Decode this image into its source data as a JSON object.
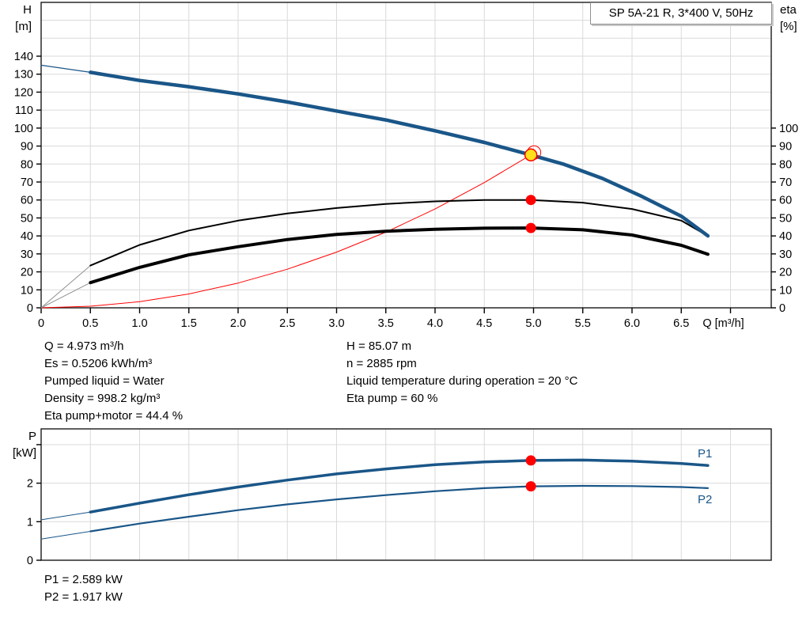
{
  "title_box": "SP 5A-21 R, 3*400 V, 50Hz",
  "axis_labels": {
    "h_line1": "H",
    "h_line2": "[m]",
    "eta_line1": "eta",
    "eta_line2": "[%]",
    "p_line1": "P",
    "p_line2": "[kW]",
    "q_unit": "Q [m³/h]"
  },
  "info": {
    "left": [
      "Q = 4.973 m³/h",
      "Es = 0.5206 kWh/m³",
      "Pumped liquid = Water",
      "Density = 998.2 kg/m³",
      "Eta pump+motor = 44.4 %"
    ],
    "right": [
      "H = 85.07 m",
      "n = 2885 rpm",
      "Liquid temperature during operation = 20 °C",
      "Eta pump = 60 %"
    ]
  },
  "power": [
    "P1 = 2.589 kW",
    "P2 = 1.917 kW"
  ],
  "curve_labels": {
    "p1": "P1",
    "p2": "P2"
  },
  "colors": {
    "curve_blue": "#1A5688",
    "eta_black": "#000000",
    "lead_gray": "#909090",
    "system_red": "#FF0000",
    "marker_red": "#FF0000",
    "marker_yellow": "#FFE01A",
    "grid": "#DADADA",
    "border": "#1a1a1a"
  },
  "operating_point": {
    "q": 4.973,
    "h": 85.07,
    "eta_pump": 60,
    "eta_pump_motor": 44.4,
    "p1": 2.589,
    "p2": 1.917
  },
  "chart_data": [
    {
      "type": "line",
      "title": "SP 5A-21 R, 3*400 V, 50Hz",
      "xlabel": "Q [m³/h]",
      "ylabel_left": "H [m]",
      "ylabel_right": "eta [%]",
      "xlim": [
        0,
        7.41
      ],
      "ylim_left": [
        0,
        170
      ],
      "ylim_right": [
        0,
        100
      ],
      "x_grid": [
        0.5,
        1,
        1.5,
        2,
        2.5,
        3,
        3.5,
        4,
        4.5,
        5,
        5.5,
        6,
        6.5,
        7
      ],
      "y_grid": [
        10,
        20,
        30,
        40,
        50,
        60,
        70,
        80,
        90,
        100,
        110,
        120,
        130,
        140,
        150,
        160
      ],
      "x_ticks": [
        0,
        0.5,
        1,
        1.5,
        2,
        2.5,
        3,
        3.5,
        4,
        4.5,
        5,
        5.5,
        6,
        6.5,
        7
      ],
      "x_tick_labels": [
        "0",
        "0.5",
        "1.0",
        "1.5",
        "2.0",
        "2.5",
        "3.0",
        "3.5",
        "4.0",
        "4.5",
        "5.0",
        "5.5",
        "6.0",
        "6.5",
        "Q [m³/h]"
      ],
      "y_ticks_left": [
        0,
        10,
        20,
        30,
        40,
        50,
        60,
        70,
        80,
        90,
        100,
        110,
        120,
        130,
        140
      ],
      "y_tick_labels_left": [
        "0",
        "10",
        "20",
        "30",
        "40",
        "50",
        "60",
        "70",
        "80",
        "90",
        "100",
        "110",
        "120",
        "130",
        "140"
      ],
      "y_ticks_right": [
        0,
        10,
        20,
        30,
        40,
        50,
        60,
        70,
        80,
        90,
        100
      ],
      "y_tick_labels_right": [
        "0",
        "10",
        "20",
        "30",
        "40",
        "50",
        "60",
        "70",
        "80",
        "90",
        "100"
      ],
      "series": [
        {
          "name": "system-curve",
          "color": "#FF0000",
          "width": 1,
          "points": [
            [
              0,
              0
            ],
            [
              0.5,
              0.86
            ],
            [
              1,
              3.4
            ],
            [
              1.5,
              7.7
            ],
            [
              2,
              13.8
            ],
            [
              2.5,
              21.5
            ],
            [
              3,
              31
            ],
            [
              3.5,
              42.1
            ],
            [
              4,
              55
            ],
            [
              4.5,
              69.7
            ],
            [
              4.973,
              85.07
            ]
          ]
        },
        {
          "name": "eta-pump-lead",
          "color": "#909090",
          "width": 1,
          "points": [
            [
              0,
              0
            ],
            [
              0.5,
              23.5
            ]
          ]
        },
        {
          "name": "eta-pump-motor-lead",
          "color": "#909090",
          "width": 1,
          "points": [
            [
              0,
              0
            ],
            [
              0.5,
              14
            ]
          ]
        },
        {
          "name": "eta-pump-curve",
          "color": "#000000",
          "width": 2,
          "points": [
            [
              0.5,
              23.5
            ],
            [
              1,
              35
            ],
            [
              1.5,
              43
            ],
            [
              2,
              48.5
            ],
            [
              2.5,
              52.5
            ],
            [
              3,
              55.5
            ],
            [
              3.5,
              57.8
            ],
            [
              4,
              59.2
            ],
            [
              4.5,
              60
            ],
            [
              4.973,
              60
            ],
            [
              5.5,
              58.5
            ],
            [
              6,
              55
            ],
            [
              6.5,
              48.5
            ],
            [
              6.77,
              40
            ]
          ]
        },
        {
          "name": "eta-pump-motor-curve",
          "color": "#000000",
          "width": 4,
          "points": [
            [
              0.5,
              14
            ],
            [
              1,
              22.5
            ],
            [
              1.5,
              29.5
            ],
            [
              2,
              34
            ],
            [
              2.5,
              38
            ],
            [
              3,
              40.8
            ],
            [
              3.5,
              42.6
            ],
            [
              4,
              43.7
            ],
            [
              4.5,
              44.3
            ],
            [
              4.973,
              44.4
            ],
            [
              5.5,
              43.4
            ],
            [
              6,
              40.5
            ],
            [
              6.5,
              34.8
            ],
            [
              6.77,
              29.8
            ]
          ]
        },
        {
          "name": "pump-curve-lead",
          "color": "#1A5688",
          "width": 1.2,
          "points": [
            [
              0,
              135
            ],
            [
              0.5,
              131
            ]
          ]
        },
        {
          "name": "pump-curve",
          "color": "#1A5688",
          "width": 4.5,
          "points": [
            [
              0.5,
              131
            ],
            [
              1,
              126.5
            ],
            [
              1.5,
              123
            ],
            [
              2,
              119
            ],
            [
              2.5,
              114.5
            ],
            [
              3,
              109.5
            ],
            [
              3.5,
              104.5
            ],
            [
              4,
              98.5
            ],
            [
              4.5,
              92
            ],
            [
              4.973,
              85.07
            ],
            [
              5.3,
              80
            ],
            [
              5.7,
              72
            ],
            [
              6.1,
              62
            ],
            [
              6.5,
              51
            ],
            [
              6.77,
              40
            ]
          ]
        }
      ],
      "markers": [
        {
          "name": "duty-point-marker",
          "q": 4.973,
          "v": 85.07,
          "style": "duty"
        },
        {
          "name": "eta-pump-marker",
          "q": 4.973,
          "v": 60,
          "style": "dot"
        },
        {
          "name": "eta-pump-motor-marker",
          "q": 4.973,
          "v": 44.4,
          "style": "dot"
        }
      ]
    },
    {
      "type": "line",
      "title": "",
      "xlabel": "",
      "ylabel_left": "P [kW]",
      "xlim": [
        0,
        7.41
      ],
      "ylim_left": [
        0,
        3.41
      ],
      "x_grid": [
        0.5,
        1,
        1.5,
        2,
        2.5,
        3,
        3.5,
        4,
        4.5,
        5,
        5.5,
        6,
        6.5,
        7
      ],
      "y_grid": [
        1,
        2,
        3
      ],
      "x_ticks": [],
      "x_tick_labels": [],
      "y_ticks_left": [
        0,
        1,
        2,
        3
      ],
      "y_tick_labels_left": [
        "0",
        "1",
        "2",
        ""
      ],
      "series": [
        {
          "name": "p1-lead",
          "color": "#1A5688",
          "width": 1,
          "points": [
            [
              0,
              1.05
            ],
            [
              0.5,
              1.25
            ]
          ]
        },
        {
          "name": "p2-lead",
          "color": "#1A5688",
          "width": 1,
          "points": [
            [
              0,
              0.55
            ],
            [
              0.5,
              0.75
            ]
          ]
        },
        {
          "name": "p1-curve",
          "color": "#1A5688",
          "width": 3.5,
          "points": [
            [
              0.5,
              1.25
            ],
            [
              1,
              1.48
            ],
            [
              1.5,
              1.7
            ],
            [
              2,
              1.9
            ],
            [
              2.5,
              2.08
            ],
            [
              3,
              2.24
            ],
            [
              3.5,
              2.37
            ],
            [
              4,
              2.48
            ],
            [
              4.5,
              2.55
            ],
            [
              4.973,
              2.589
            ],
            [
              5.5,
              2.6
            ],
            [
              6,
              2.57
            ],
            [
              6.5,
              2.51
            ],
            [
              6.77,
              2.46
            ]
          ]
        },
        {
          "name": "p2-curve",
          "color": "#1A5688",
          "width": 2.2,
          "points": [
            [
              0.5,
              0.75
            ],
            [
              1,
              0.95
            ],
            [
              1.5,
              1.13
            ],
            [
              2,
              1.3
            ],
            [
              2.5,
              1.45
            ],
            [
              3,
              1.58
            ],
            [
              3.5,
              1.69
            ],
            [
              4,
              1.79
            ],
            [
              4.5,
              1.87
            ],
            [
              4.973,
              1.917
            ],
            [
              5.5,
              1.93
            ],
            [
              6,
              1.925
            ],
            [
              6.5,
              1.9
            ],
            [
              6.77,
              1.87
            ]
          ]
        }
      ],
      "markers": [
        {
          "name": "p1-marker",
          "q": 4.973,
          "v": 2.589,
          "style": "dot"
        },
        {
          "name": "p2-marker",
          "q": 4.973,
          "v": 1.917,
          "style": "dot"
        }
      ]
    }
  ]
}
